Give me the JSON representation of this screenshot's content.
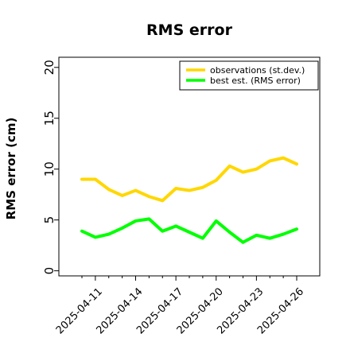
{
  "chart_data": {
    "type": "line",
    "title": "RMS error",
    "xlabel": "",
    "ylabel": "RMS error (cm)",
    "x": [
      "2025-04-10",
      "2025-04-11",
      "2025-04-12",
      "2025-04-13",
      "2025-04-14",
      "2025-04-15",
      "2025-04-16",
      "2025-04-17",
      "2025-04-18",
      "2025-04-19",
      "2025-04-20",
      "2025-04-21",
      "2025-04-22",
      "2025-04-23",
      "2025-04-24",
      "2025-04-25",
      "2025-04-26"
    ],
    "x_ticks": [
      "2025-04-11",
      "2025-04-14",
      "2025-04-17",
      "2025-04-20",
      "2025-04-23",
      "2025-04-26"
    ],
    "x_tick_colors": [
      "#000000",
      "#000000",
      "#1a8f1a",
      "#000000",
      "#000000",
      "#000000"
    ],
    "ylim": [
      -0.5,
      21
    ],
    "y_ticks": [
      0,
      5,
      10,
      15,
      20
    ],
    "grid": false,
    "legend_position": "top-right",
    "series": [
      {
        "name": "observations (st.dev.)",
        "color": "#ffd700",
        "values": [
          9.0,
          9.0,
          8.0,
          7.4,
          7.9,
          7.3,
          6.9,
          8.1,
          7.9,
          8.2,
          8.9,
          10.3,
          9.7,
          10.0,
          10.8,
          11.1,
          10.5
        ]
      },
      {
        "name": "best est. (RMS error)",
        "color": "#00ff00",
        "values": [
          3.9,
          3.3,
          3.6,
          4.2,
          4.9,
          5.1,
          3.9,
          4.4,
          3.8,
          3.2,
          4.9,
          3.8,
          2.8,
          3.5,
          3.2,
          3.6,
          4.1
        ]
      }
    ]
  }
}
